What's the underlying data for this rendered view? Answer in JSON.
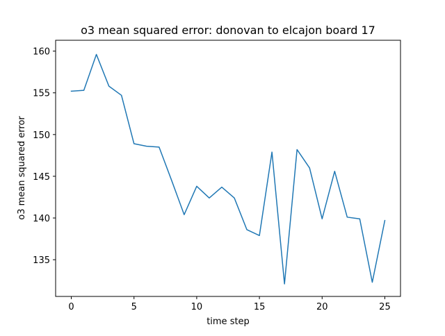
{
  "chart_data": {
    "type": "line",
    "title": "o3 mean squared error: donovan to elcajon board 17",
    "xlabel": "time step",
    "ylabel": "o3 mean squared error",
    "xlim": [
      -1.25,
      26.25
    ],
    "ylim": [
      130.6,
      161.3
    ],
    "xticks": [
      0,
      5,
      10,
      15,
      20,
      25
    ],
    "yticks": [
      135,
      140,
      145,
      150,
      155,
      160
    ],
    "grid": false,
    "series": [
      {
        "color": "#1f77b4",
        "x": [
          0,
          1,
          2,
          3,
          4,
          5,
          6,
          7,
          8,
          9,
          10,
          11,
          12,
          13,
          14,
          15,
          16,
          17,
          18,
          19,
          20,
          21,
          22,
          23,
          24,
          25
        ],
        "values": [
          155.2,
          155.3,
          159.6,
          155.8,
          154.7,
          148.9,
          148.6,
          148.5,
          144.5,
          140.4,
          143.8,
          142.4,
          143.7,
          142.4,
          138.6,
          137.9,
          147.9,
          132.1,
          148.2,
          146.0,
          139.9,
          145.6,
          140.1,
          139.9,
          132.3,
          139.7
        ]
      }
    ]
  }
}
